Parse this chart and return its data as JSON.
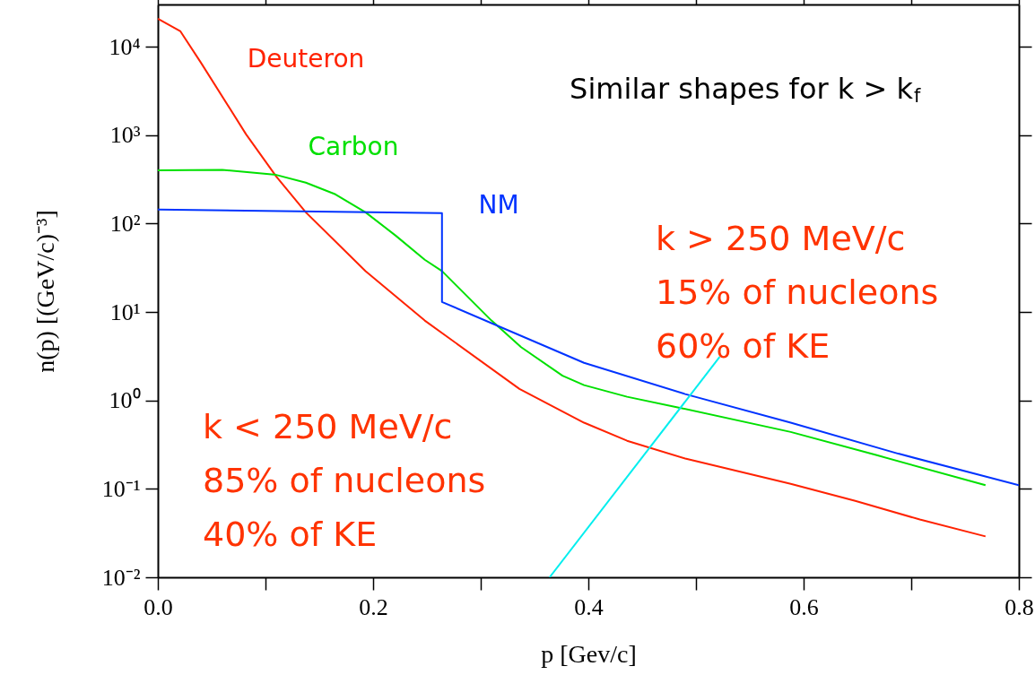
{
  "chart_data": {
    "type": "line",
    "xlabel": "p [Gev/c]",
    "ylabel": "n(p) [(GeV/c)⁻³]",
    "xlim": [
      0,
      0.8
    ],
    "ylim": [
      0.01,
      30000
    ],
    "log": "y",
    "grid": false,
    "marker": "none",
    "line_style": "solid",
    "xticks": [
      {
        "value": 0,
        "label": "0.0"
      },
      {
        "value": 0.1,
        "label": null
      },
      0.2,
      {
        "value": 0.3,
        "label": null
      },
      0.4,
      {
        "value": 0.5,
        "label": null
      },
      0.6,
      {
        "value": 0.7,
        "label": null
      },
      0.8
    ],
    "yticks": [
      {
        "value": 0.01,
        "label": "10⁻²"
      },
      {
        "value": 0.1,
        "label": "10⁻¹"
      },
      {
        "value": 1,
        "label": "10⁰"
      },
      {
        "value": 10,
        "label": "10¹"
      },
      {
        "value": 100,
        "label": "10²"
      },
      {
        "value": 1000,
        "label": "10³"
      },
      {
        "value": 10000,
        "label": "10⁴"
      }
    ],
    "series": [
      {
        "name": "Deuteron",
        "color": "#ff2200",
        "x": [
          0,
          0.021,
          0.04,
          0.082,
          0.11,
          0.1375,
          0.193,
          0.248,
          0.336,
          0.396,
          0.436,
          0.49,
          0.588,
          0.648,
          0.708,
          0.769
        ],
        "values": [
          20700,
          14900,
          6600,
          1020,
          340,
          134,
          29,
          8,
          1.35,
          0.56,
          0.35,
          0.22,
          0.114,
          0.073,
          0.045,
          0.029
        ]
      },
      {
        "name": "Carbon",
        "color": "#00e000",
        "x": [
          0,
          0.06,
          0.11,
          0.1375,
          0.165,
          0.193,
          0.221,
          0.248,
          0.264,
          0.31,
          0.3375,
          0.376,
          0.396,
          0.436,
          0.484,
          0.588,
          0.668,
          0.769
        ],
        "values": [
          400,
          405,
          355,
          290,
          214,
          134,
          73,
          39,
          29,
          8,
          4,
          1.9,
          1.49,
          1.1,
          0.83,
          0.44,
          0.24,
          0.11
        ]
      },
      {
        "name": "NM",
        "color": "#0033ff",
        "x": [
          0,
          0.264,
          0.264,
          0.396,
          0.49,
          0.588,
          0.688,
          0.8
        ],
        "values": [
          144,
          131,
          13,
          2.66,
          1.18,
          0.56,
          0.25,
          0.11
        ]
      },
      {
        "color": "#00eeee",
        "x": [
          0.364,
          0.522
        ],
        "values": [
          0.01,
          3.1
        ]
      }
    ],
    "annotations": [
      "Similar shapes for k > k$_{f}$",
      "k > 250 MeV/c\n15% of nucleons\n60% of KE",
      "k < 250 MeV/c\n85% of nucleons\n40% of KE"
    ]
  }
}
